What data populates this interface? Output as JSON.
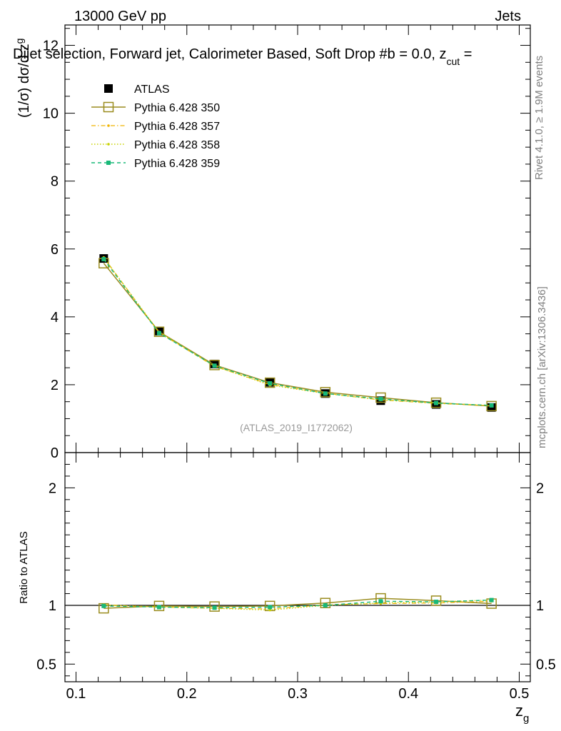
{
  "header": {
    "energy": "13000 GeV pp",
    "category": "Jets",
    "title": "Dijet selection, Forward jet, Calorimeter Based, Soft Drop #b = 0.0, z",
    "title_cut_sub": "cut",
    "title_tail": " =",
    "rivet_label": "Rivet 4.1.0, ≥ 1.9M events",
    "mcplots_label": "mcplots.cern.ch [arXiv:1306.3436]",
    "analysis_id": "(ATLAS_2019_I1772062)"
  },
  "chart_data": [
    {
      "type": "line",
      "panel": "main",
      "ylabel": "(1/σ) dσ/d z",
      "ylabel_sub": "g",
      "xlim": [
        0.09,
        0.51
      ],
      "ylim": [
        0,
        12.6
      ],
      "yticks": [
        0,
        2,
        4,
        6,
        8,
        10,
        12
      ],
      "ytick_labels": [
        "0",
        "2",
        "4",
        "6",
        "8",
        "10",
        "12"
      ],
      "x": [
        0.125,
        0.175,
        0.225,
        0.275,
        0.325,
        0.375,
        0.425,
        0.475
      ],
      "series": [
        {
          "name": "ATLAS",
          "style": "data",
          "color": "#000000",
          "values": [
            5.72,
            3.58,
            2.61,
            2.07,
            1.74,
            1.53,
            1.42,
            1.33
          ]
        },
        {
          "name": "Pythia 6.428 350",
          "style": "open-square-solid",
          "color": "#9a8c1e",
          "values": [
            5.58,
            3.56,
            2.58,
            2.06,
            1.78,
            1.62,
            1.47,
            1.37
          ]
        },
        {
          "name": "Pythia 6.428 357",
          "style": "dashdot-small",
          "color": "#f0b400",
          "values": [
            5.75,
            3.53,
            2.54,
            2.01,
            1.75,
            1.55,
            1.45,
            1.38
          ]
        },
        {
          "name": "Pythia 6.428 358",
          "style": "dotted-small",
          "color": "#c8d200",
          "values": [
            5.74,
            3.55,
            2.55,
            1.99,
            1.74,
            1.56,
            1.46,
            1.39
          ]
        },
        {
          "name": "Pythia 6.428 359",
          "style": "dashed-square",
          "color": "#18b878",
          "values": [
            5.7,
            3.52,
            2.56,
            2.04,
            1.74,
            1.58,
            1.46,
            1.39
          ]
        }
      ],
      "legend_position": "top-left"
    },
    {
      "type": "line",
      "panel": "ratio",
      "xlabel": "z",
      "xlabel_sub": "g",
      "ylabel": "Ratio to ATLAS",
      "xlim": [
        0.09,
        0.51
      ],
      "ylim": [
        0.35,
        2.3
      ],
      "xticks": [
        0.1,
        0.2,
        0.3,
        0.4,
        0.5
      ],
      "xtick_labels": [
        "0.1",
        "0.2",
        "0.3",
        "0.4",
        "0.5"
      ],
      "yticks": [
        0.5,
        1,
        2
      ],
      "ytick_labels": [
        "0.5",
        "1",
        "2"
      ],
      "x": [
        0.125,
        0.175,
        0.225,
        0.275,
        0.325,
        0.375,
        0.425,
        0.475
      ],
      "series": [
        {
          "name": "Pythia 6.428 350",
          "color": "#9a8c1e",
          "values": [
            0.975,
            0.995,
            0.99,
            0.995,
            1.02,
            1.06,
            1.04,
            1.015
          ]
        },
        {
          "name": "Pythia 6.428 357",
          "color": "#f0b400",
          "values": [
            1.005,
            0.985,
            0.975,
            0.97,
            1.005,
            1.015,
            1.02,
            1.035
          ]
        },
        {
          "name": "Pythia 6.428 358",
          "color": "#c8d200",
          "values": [
            1.0,
            0.99,
            0.975,
            0.96,
            1.0,
            1.02,
            1.03,
            1.045
          ]
        },
        {
          "name": "Pythia 6.428 359",
          "color": "#18b878",
          "values": [
            0.995,
            0.985,
            0.98,
            0.985,
            1.0,
            1.035,
            1.03,
            1.045
          ]
        }
      ]
    }
  ]
}
